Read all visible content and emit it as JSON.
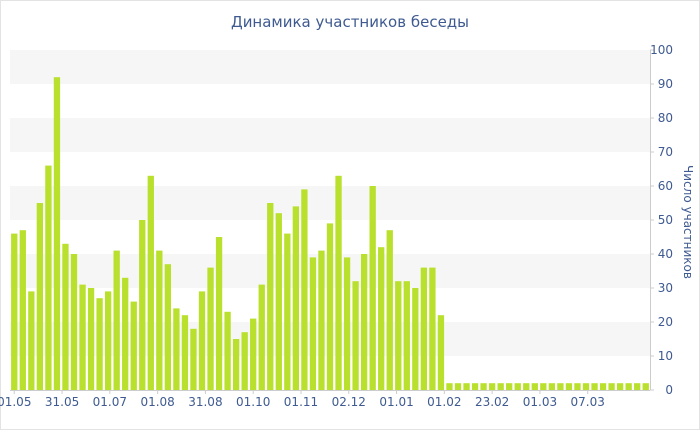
{
  "chart_data": {
    "type": "bar",
    "title": "Динамика участников беседы",
    "xlabel": "",
    "ylabel": "Число участников",
    "ylim": [
      0,
      100
    ],
    "yticks": [
      0,
      10,
      20,
      30,
      40,
      50,
      60,
      70,
      80,
      90,
      100
    ],
    "y_axis_side": "right",
    "grid": "alternating horizontal bands",
    "colors": {
      "bar": "#b8e02c",
      "band": "#f6f6f6",
      "text": "#3e5a90",
      "axis": "#cccccc"
    },
    "xtick_labels": [
      "01.05",
      "31.05",
      "01.07",
      "01.08",
      "31.08",
      "01.10",
      "01.11",
      "02.12",
      "01.01",
      "01.02",
      "23.02",
      "01.03",
      "07.03"
    ],
    "values": [
      46,
      47,
      29,
      55,
      66,
      92,
      43,
      40,
      31,
      30,
      27,
      29,
      41,
      33,
      26,
      50,
      63,
      41,
      37,
      24,
      22,
      18,
      29,
      36,
      45,
      23,
      15,
      17,
      21,
      31,
      55,
      52,
      46,
      54,
      59,
      39,
      41,
      49,
      63,
      39,
      32,
      40,
      60,
      42,
      47,
      32,
      32,
      30,
      36,
      36,
      22,
      2,
      2,
      2,
      2,
      2,
      2,
      2,
      2,
      2,
      2,
      2,
      2,
      2,
      2,
      2,
      2,
      2,
      2,
      2,
      2,
      2,
      2,
      2,
      2
    ]
  }
}
